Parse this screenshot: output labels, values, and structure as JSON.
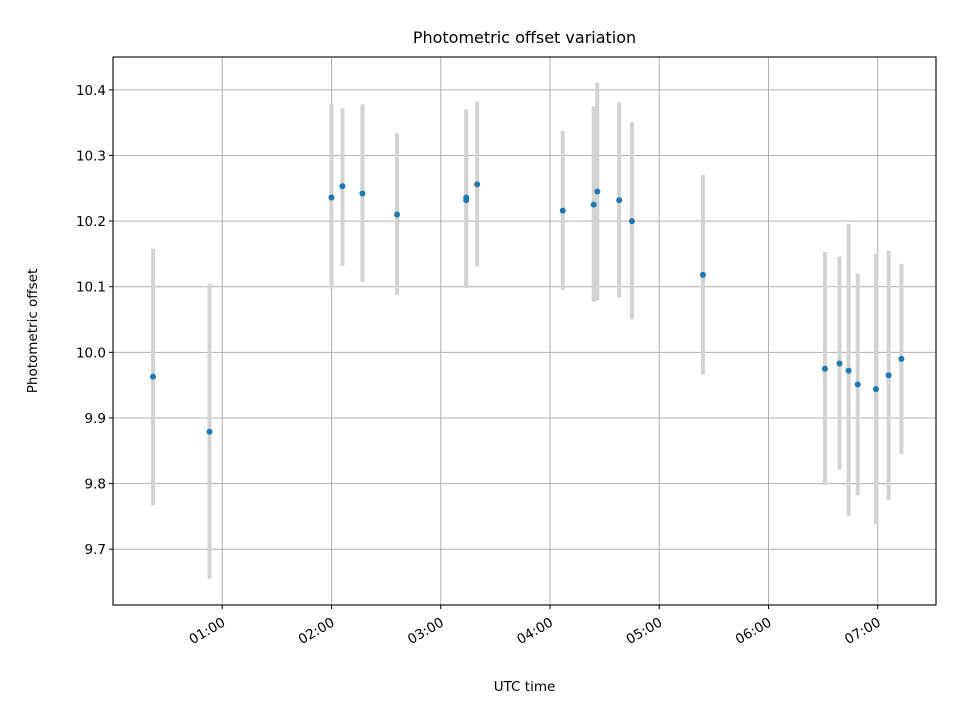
{
  "chart_data": {
    "type": "scatter",
    "title": "Photometric offset variation",
    "xlabel": "UTC time",
    "ylabel": "Photometric offset",
    "xlim": [
      "00:00",
      "07:32"
    ],
    "ylim": [
      9.615,
      10.45
    ],
    "grid": true,
    "colors": {
      "points": "#1f77b4",
      "error_bars": "#d3d3d3"
    },
    "x_ticks": [
      "01:00",
      "02:00",
      "03:00",
      "04:00",
      "05:00",
      "06:00",
      "07:00"
    ],
    "y_ticks": [
      "9.7",
      "9.8",
      "9.9",
      "10.0",
      "10.1",
      "10.2",
      "10.3",
      "10.4"
    ],
    "series": [
      {
        "points": [
          {
            "x": "00:22",
            "y": 9.963,
            "err_low": 9.767,
            "err_high": 10.158
          },
          {
            "x": "00:53",
            "y": 9.879,
            "err_low": 9.655,
            "err_high": 10.104
          },
          {
            "x": "02:00",
            "y": 10.236,
            "err_low": 10.097,
            "err_high": 10.378
          },
          {
            "x": "02:06",
            "y": 10.253,
            "err_low": 10.132,
            "err_high": 10.372
          },
          {
            "x": "02:17",
            "y": 10.242,
            "err_low": 10.107,
            "err_high": 10.378
          },
          {
            "x": "02:36",
            "y": 10.21,
            "err_low": 10.087,
            "err_high": 10.334
          },
          {
            "x": "03:14",
            "y": 10.232,
            "err_low": 10.098,
            "err_high": 10.37
          },
          {
            "x": "03:14",
            "y": 10.236,
            "err_low": 10.098,
            "err_high": 10.37
          },
          {
            "x": "03:20",
            "y": 10.256,
            "err_low": 10.131,
            "err_high": 10.382
          },
          {
            "x": "04:07",
            "y": 10.216,
            "err_low": 10.095,
            "err_high": 10.337
          },
          {
            "x": "04:24",
            "y": 10.225,
            "err_low": 10.077,
            "err_high": 10.375
          },
          {
            "x": "04:26",
            "y": 10.245,
            "err_low": 10.079,
            "err_high": 10.411
          },
          {
            "x": "04:38",
            "y": 10.232,
            "err_low": 10.084,
            "err_high": 10.381
          },
          {
            "x": "04:45",
            "y": 10.2,
            "err_low": 10.05,
            "err_high": 10.351
          },
          {
            "x": "05:24",
            "y": 10.118,
            "err_low": 9.966,
            "err_high": 10.27
          },
          {
            "x": "06:31",
            "y": 9.975,
            "err_low": 9.798,
            "err_high": 10.153
          },
          {
            "x": "06:39",
            "y": 9.983,
            "err_low": 9.821,
            "err_high": 10.146
          },
          {
            "x": "06:44",
            "y": 9.972,
            "err_low": 9.751,
            "err_high": 10.196
          },
          {
            "x": "06:49",
            "y": 9.951,
            "err_low": 9.782,
            "err_high": 10.12
          },
          {
            "x": "06:59",
            "y": 9.944,
            "err_low": 9.738,
            "err_high": 10.15
          },
          {
            "x": "07:06",
            "y": 9.965,
            "err_low": 9.775,
            "err_high": 10.155
          },
          {
            "x": "07:13",
            "y": 9.99,
            "err_low": 9.845,
            "err_high": 10.135
          }
        ]
      }
    ]
  }
}
